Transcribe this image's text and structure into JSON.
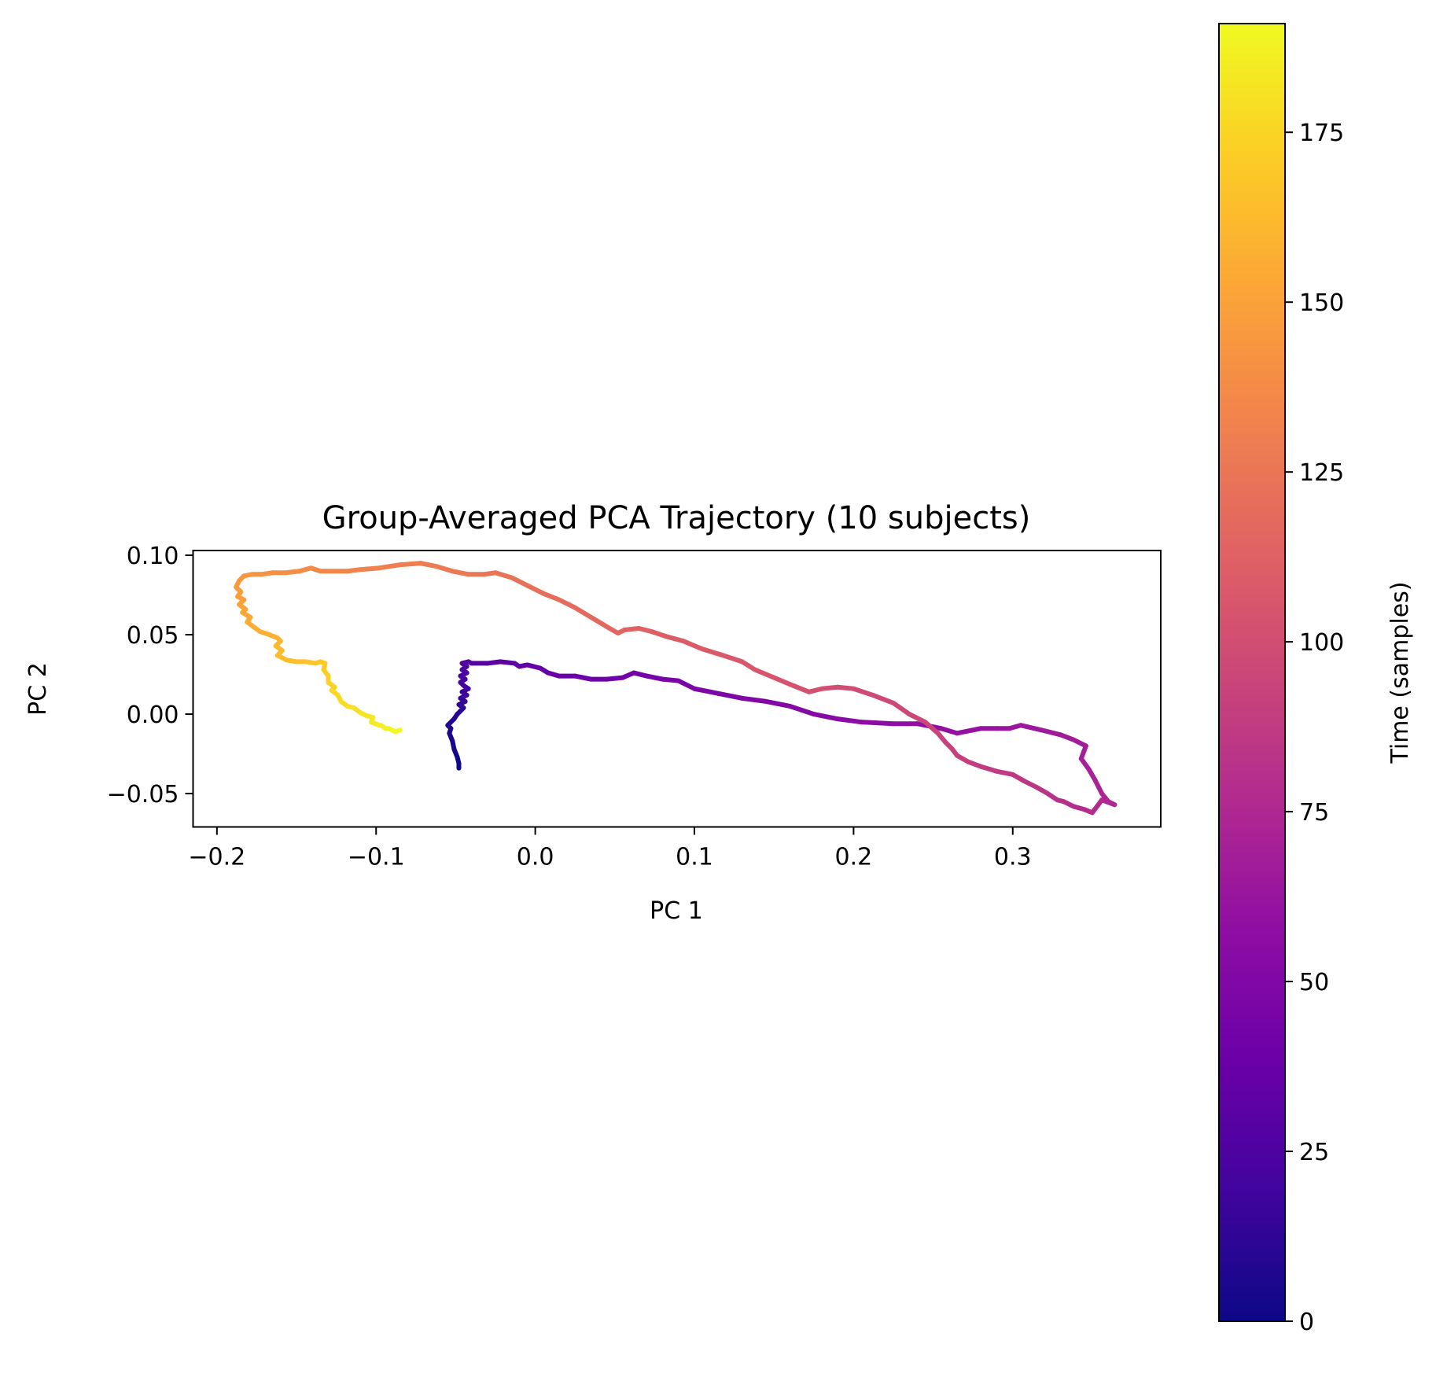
{
  "chart_data": {
    "type": "line",
    "title": "Group-Averaged PCA Trajectory (10 subjects)",
    "xlabel": "PC 1",
    "ylabel": "PC 2",
    "xlim": [
      -0.215,
      0.393
    ],
    "ylim": [
      -0.071,
      0.103
    ],
    "xticks": [
      -0.2,
      -0.1,
      0.0,
      0.1,
      0.2,
      0.3
    ],
    "xtick_labels": [
      "−0.2",
      "−0.1",
      "0.0",
      "0.1",
      "0.2",
      "0.3"
    ],
    "yticks": [
      -0.05,
      0.0,
      0.05,
      0.1
    ],
    "ytick_labels": [
      "−0.05",
      "0.00",
      "0.05",
      "0.10"
    ],
    "grid": false,
    "colormap": "plasma",
    "colorbar": {
      "label": "Time (samples)",
      "range": [
        0,
        191
      ],
      "ticks": [
        0,
        25,
        50,
        75,
        100,
        125,
        150,
        175
      ],
      "tick_labels": [
        "0",
        "25",
        "50",
        "75",
        "100",
        "125",
        "150",
        "175"
      ]
    },
    "series": [
      {
        "x": [
          -0.048,
          -0.048,
          -0.049,
          -0.051,
          -0.052,
          -0.054,
          -0.053,
          -0.055,
          -0.051,
          -0.049,
          -0.047,
          -0.045,
          -0.048,
          -0.044,
          -0.047,
          -0.043,
          -0.046,
          -0.042,
          -0.045,
          -0.047,
          -0.044,
          -0.047,
          -0.043,
          -0.046,
          -0.043,
          -0.046,
          -0.042,
          -0.04,
          -0.03,
          -0.022,
          -0.013,
          -0.01,
          -0.005,
          0.003,
          0.008,
          0.015,
          0.025,
          0.035,
          0.045,
          0.055,
          0.062,
          0.07,
          0.08,
          0.09,
          0.1,
          0.115,
          0.13,
          0.145,
          0.16,
          0.175,
          0.19,
          0.205,
          0.225,
          0.24,
          0.255,
          0.265,
          0.28,
          0.29,
          0.298,
          0.305,
          0.318,
          0.33,
          0.338,
          0.346,
          0.343,
          0.348,
          0.352,
          0.356,
          0.36,
          0.364,
          0.356,
          0.35,
          0.345,
          0.338,
          0.332,
          0.328,
          0.322,
          0.315,
          0.307,
          0.3,
          0.29,
          0.28,
          0.272,
          0.265,
          0.262,
          0.258,
          0.253,
          0.245,
          0.235,
          0.225,
          0.212,
          0.2,
          0.19,
          0.18,
          0.172,
          0.162,
          0.15,
          0.138,
          0.13,
          0.118,
          0.105,
          0.093,
          0.082,
          0.073,
          0.065,
          0.056,
          0.052,
          0.045,
          0.035,
          0.025,
          0.015,
          0.005,
          -0.005,
          -0.015,
          -0.025,
          -0.032,
          -0.042,
          -0.052,
          -0.062,
          -0.072,
          -0.085,
          -0.098,
          -0.11,
          -0.118,
          -0.125,
          -0.135,
          -0.141,
          -0.148,
          -0.157,
          -0.165,
          -0.172,
          -0.178,
          -0.183,
          -0.186,
          -0.188,
          -0.185,
          -0.187,
          -0.183,
          -0.186,
          -0.182,
          -0.184,
          -0.179,
          -0.181,
          -0.177,
          -0.173,
          -0.167,
          -0.162,
          -0.16,
          -0.163,
          -0.159,
          -0.162,
          -0.156,
          -0.15,
          -0.144,
          -0.138,
          -0.135,
          -0.132,
          -0.133,
          -0.13,
          -0.13,
          -0.126,
          -0.128,
          -0.124,
          -0.122,
          -0.118,
          -0.114,
          -0.11,
          -0.106,
          -0.102,
          -0.103,
          -0.098,
          -0.097,
          -0.094,
          -0.092,
          -0.09,
          -0.088,
          -0.085
        ],
        "y": [
          -0.034,
          -0.031,
          -0.027,
          -0.022,
          -0.017,
          -0.012,
          -0.009,
          -0.007,
          -0.003,
          0.0,
          0.002,
          0.004,
          0.006,
          0.008,
          0.01,
          0.012,
          0.014,
          0.016,
          0.018,
          0.02,
          0.022,
          0.024,
          0.026,
          0.028,
          0.03,
          0.032,
          0.033,
          0.032,
          0.032,
          0.033,
          0.032,
          0.03,
          0.031,
          0.029,
          0.026,
          0.024,
          0.024,
          0.022,
          0.022,
          0.023,
          0.026,
          0.024,
          0.022,
          0.021,
          0.016,
          0.013,
          0.01,
          0.008,
          0.005,
          0.0,
          -0.003,
          -0.005,
          -0.006,
          -0.006,
          -0.009,
          -0.012,
          -0.009,
          -0.009,
          -0.009,
          -0.007,
          -0.01,
          -0.013,
          -0.016,
          -0.02,
          -0.028,
          -0.035,
          -0.042,
          -0.05,
          -0.055,
          -0.057,
          -0.054,
          -0.062,
          -0.06,
          -0.058,
          -0.055,
          -0.054,
          -0.05,
          -0.046,
          -0.042,
          -0.038,
          -0.036,
          -0.033,
          -0.03,
          -0.026,
          -0.022,
          -0.018,
          -0.012,
          -0.005,
          0.0,
          0.007,
          0.012,
          0.016,
          0.017,
          0.016,
          0.014,
          0.018,
          0.023,
          0.028,
          0.033,
          0.037,
          0.041,
          0.046,
          0.049,
          0.052,
          0.054,
          0.053,
          0.051,
          0.055,
          0.061,
          0.067,
          0.072,
          0.076,
          0.081,
          0.086,
          0.089,
          0.088,
          0.088,
          0.09,
          0.093,
          0.095,
          0.094,
          0.092,
          0.091,
          0.09,
          0.09,
          0.09,
          0.092,
          0.09,
          0.089,
          0.089,
          0.088,
          0.088,
          0.087,
          0.084,
          0.08,
          0.077,
          0.074,
          0.072,
          0.069,
          0.066,
          0.064,
          0.061,
          0.058,
          0.055,
          0.052,
          0.05,
          0.048,
          0.046,
          0.043,
          0.04,
          0.037,
          0.034,
          0.033,
          0.033,
          0.032,
          0.033,
          0.032,
          0.028,
          0.024,
          0.02,
          0.017,
          0.015,
          0.012,
          0.008,
          0.005,
          0.004,
          0.001,
          -0.001,
          -0.002,
          -0.005,
          -0.007,
          -0.007,
          -0.009,
          -0.009,
          -0.01,
          -0.011,
          -0.01
        ]
      }
    ]
  }
}
